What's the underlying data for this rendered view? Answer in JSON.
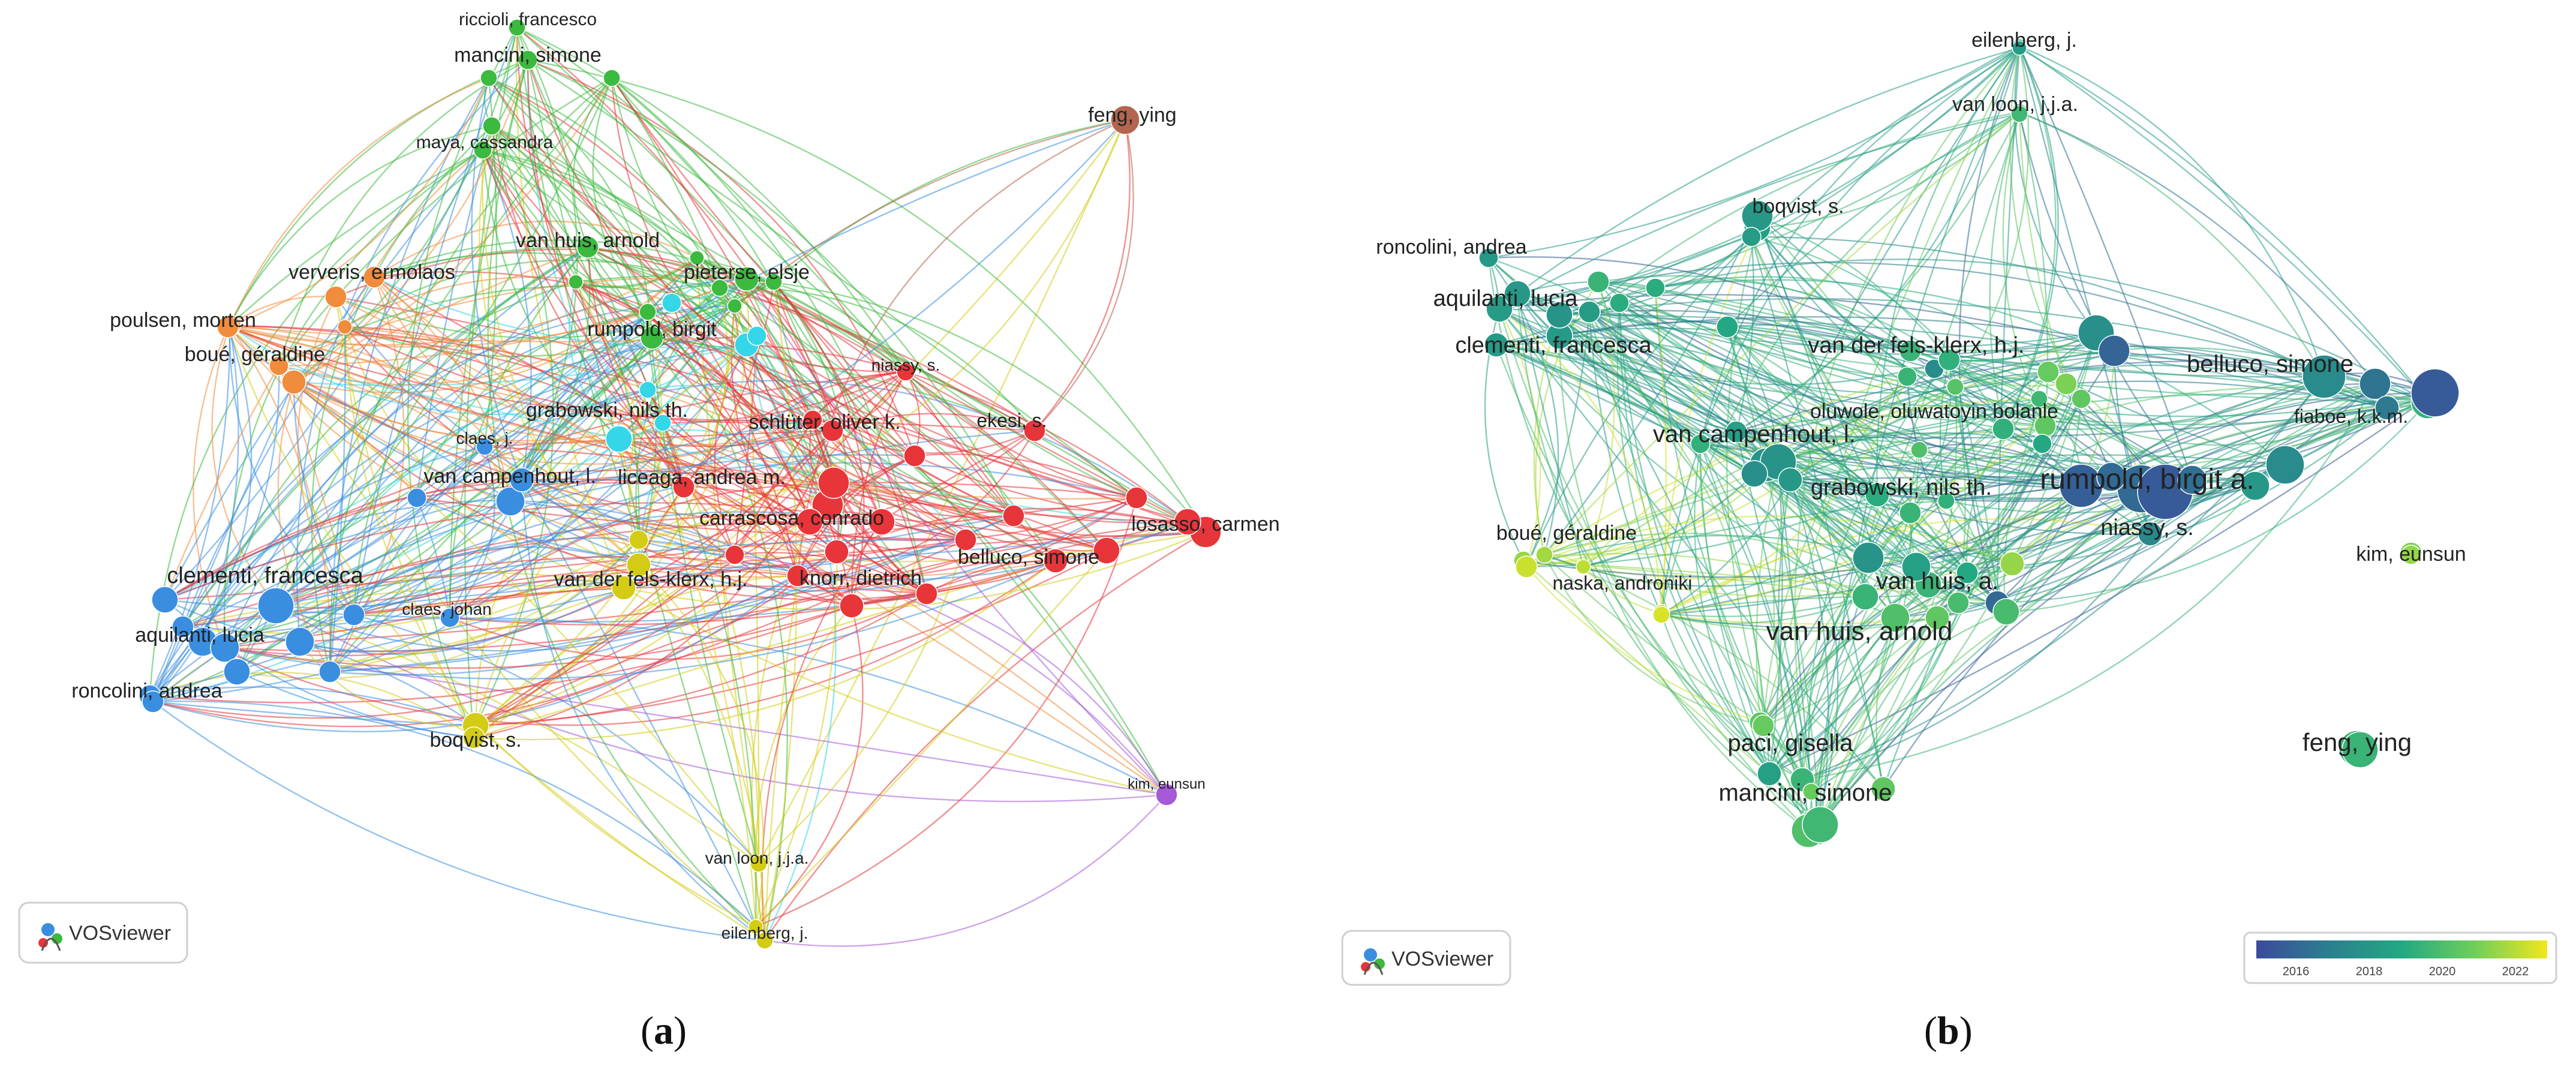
{
  "panels": [
    {
      "id": "a",
      "caption_letter": "a",
      "logo_text": "VOSviewer",
      "cluster_colors": {
        "green": "#3cb93f",
        "orange": "#f08c3c",
        "blue": "#3a8ee0",
        "red": "#e8353a",
        "yellow": "#d4cc14",
        "cyan": "#35d6e8",
        "brown": "#b4654e",
        "purple": "#a55ad8"
      },
      "labels": [
        {
          "text": "riccioli, francesco",
          "cluster": "green"
        },
        {
          "text": "mancini, simone",
          "cluster": "green"
        },
        {
          "text": "maya, cassandra",
          "cluster": "green"
        },
        {
          "text": "feng, ying",
          "cluster": "brown"
        },
        {
          "text": "van huis, arnold",
          "cluster": "green"
        },
        {
          "text": "ververis, ermolaos",
          "cluster": "orange"
        },
        {
          "text": "pieterse, elsje",
          "cluster": "green"
        },
        {
          "text": "poulsen, morten",
          "cluster": "orange"
        },
        {
          "text": "rumpold, birgit",
          "cluster": "green"
        },
        {
          "text": "boué, géraldine",
          "cluster": "orange"
        },
        {
          "text": "niassy, s.",
          "cluster": "red"
        },
        {
          "text": "grabowski, nils th.",
          "cluster": "cyan"
        },
        {
          "text": "schlüter, oliver k.",
          "cluster": "red"
        },
        {
          "text": "ekesi, s.",
          "cluster": "red"
        },
        {
          "text": "claes, j.",
          "cluster": "blue"
        },
        {
          "text": "van campenhout, l.",
          "cluster": "blue"
        },
        {
          "text": "liceaga, andrea m.",
          "cluster": "red"
        },
        {
          "text": "carrascosa, conrado",
          "cluster": "red"
        },
        {
          "text": "losasso, carmen",
          "cluster": "red"
        },
        {
          "text": "clementi, francesca",
          "cluster": "blue"
        },
        {
          "text": "belluco, simone",
          "cluster": "red"
        },
        {
          "text": "van der fels-klerx, h.j.",
          "cluster": "yellow"
        },
        {
          "text": "knorr, dietrich",
          "cluster": "red"
        },
        {
          "text": "claes, johan",
          "cluster": "blue"
        },
        {
          "text": "aquilanti, lucia",
          "cluster": "blue"
        },
        {
          "text": "roncolini, andrea",
          "cluster": "blue"
        },
        {
          "text": "boqvist, s.",
          "cluster": "yellow"
        },
        {
          "text": "kim, eunsun",
          "cluster": "purple"
        },
        {
          "text": "van loon, j.j.a.",
          "cluster": "yellow"
        },
        {
          "text": "eilenberg, j.",
          "cluster": "yellow"
        }
      ]
    },
    {
      "id": "b",
      "caption_letter": "b",
      "logo_text": "VOSviewer",
      "colorbar": {
        "ticks": [
          "2016",
          "2018",
          "2020",
          "2022"
        ],
        "colors": [
          "#3b4a9c",
          "#2c7f8e",
          "#23a883",
          "#6fce5a",
          "#f1e71d"
        ]
      },
      "labels": [
        {
          "text": "eilenberg, j.",
          "year": 2018.4
        },
        {
          "text": "van loon, j.j.a.",
          "year": 2019.8
        },
        {
          "text": "boqvist, s.",
          "year": 2018.6
        },
        {
          "text": "roncolini, andrea",
          "year": 2018.2
        },
        {
          "text": "aquilanti, lucia",
          "year": 2018.4
        },
        {
          "text": "clementi, francesca",
          "year": 2018.3
        },
        {
          "text": "van der fels-klerx, h.j.",
          "year": 2019.6
        },
        {
          "text": "belluco, simone",
          "year": 2017.6
        },
        {
          "text": "oluwole, oluwatoyin bolanle",
          "year": 2020.6
        },
        {
          "text": "fiaboe, k.k.m.",
          "year": 2019.4
        },
        {
          "text": "van campenhout, l.",
          "year": 2018.0
        },
        {
          "text": "grabowski, nils th.",
          "year": 2019.2
        },
        {
          "text": "rumpold, birgit a.",
          "year": 2016.2
        },
        {
          "text": "niassy, s.",
          "year": 2017.4
        },
        {
          "text": "boué, géraldine",
          "year": 2021.6
        },
        {
          "text": "kim, eunsun",
          "year": 2021.2
        },
        {
          "text": "naska, androniki",
          "year": 2022.4
        },
        {
          "text": "van huis, a.",
          "year": 2019.6
        },
        {
          "text": "van huis, arnold",
          "year": 2020.2
        },
        {
          "text": "paci, gisella",
          "year": 2020.6
        },
        {
          "text": "feng, ying",
          "year": 2019.6
        },
        {
          "text": "mancini, simone",
          "year": 2020.2
        }
      ]
    }
  ]
}
